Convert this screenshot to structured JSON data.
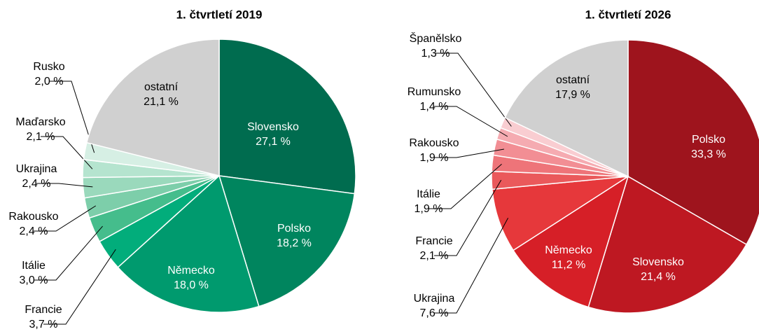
{
  "chart_data": [
    {
      "type": "pie",
      "title": "1. čtvrtletí 2019",
      "categories": [
        "Slovensko",
        "Polsko",
        "Německo",
        "Francie",
        "Itálie",
        "Rakousko",
        "Ukrajina",
        "Maďarsko",
        "Rusko",
        "ostatní"
      ],
      "values": [
        27.1,
        18.2,
        18.0,
        3.7,
        3.0,
        2.4,
        2.4,
        2.1,
        2.0,
        21.1
      ],
      "value_labels": [
        "27,1 %",
        "18,2 %",
        "18,0 %",
        "3,7 %",
        "3,0 %",
        "2,4 %",
        "2,4 %",
        "2,1 %",
        "2,0 %",
        "21,1 %"
      ],
      "colors": [
        "#006c4f",
        "#00855e",
        "#009a6e",
        "#02ad7b",
        "#45bd8c",
        "#7dceaa",
        "#9ad9bc",
        "#b5e4cf",
        "#d6efe4",
        "#d0d0d0"
      ]
    },
    {
      "type": "pie",
      "title": "1. čtvrtletí 2026",
      "categories": [
        "Polsko",
        "Slovensko",
        "Německo",
        "Ukrajina",
        "Francie",
        "Itálie",
        "Rakousko",
        "Rumunsko",
        "Španělsko",
        "ostatní"
      ],
      "values": [
        33.3,
        21.4,
        11.2,
        7.6,
        2.1,
        1.9,
        1.9,
        1.4,
        1.3,
        17.9
      ],
      "value_labels": [
        "33,3 %",
        "21,4 %",
        "11,2 %",
        "7,6 %",
        "2,1 %",
        "1,9 %",
        "1,9 %",
        "1,4 %",
        "1,3 %",
        "17,9 %"
      ],
      "colors": [
        "#9e141d",
        "#be1822",
        "#d61f27",
        "#e6383b",
        "#ea595b",
        "#ee7479",
        "#f28e94",
        "#f5abb1",
        "#f9cdd1",
        "#d0d0d0"
      ]
    }
  ]
}
